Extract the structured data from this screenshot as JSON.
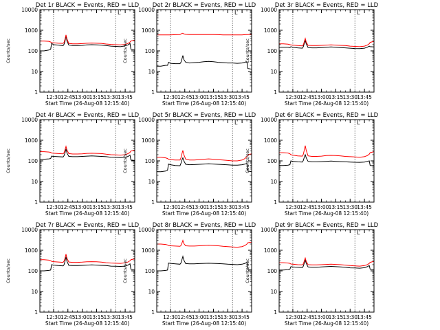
{
  "colors": {
    "events": "#000000",
    "lld": "#ff0000",
    "axis": "#000000",
    "marker": "#000000"
  },
  "shared": {
    "ylabel": "Counts/sec",
    "xlabel": "Start Time (26-Aug-08 12:15:40)",
    "y_ticks": [
      "1",
      "10",
      "100",
      "1000",
      "10000"
    ],
    "x_ticks": [
      "12:30",
      "12:45",
      "13:00",
      "13:15",
      "13:30",
      "13:45"
    ],
    "marker_times": [
      "12:30",
      "13:35"
    ],
    "corner_mark": "L"
  },
  "chart_data": [
    {
      "type": "line",
      "title": "Det 1r BLACK = Events, RED = LLD",
      "yscale": "log",
      "ylim": [
        1,
        10000
      ],
      "xlim": [
        "12:15:40",
        "13:55"
      ],
      "grid": false,
      "x": [
        "12:15:40",
        "12:20",
        "12:25",
        "12:27",
        "12:28",
        "12:30",
        "12:35",
        "12:40",
        "12:41",
        "12:42",
        "12:43",
        "12:44",
        "12:46",
        "12:50",
        "12:55",
        "13:00",
        "13:05",
        "13:10",
        "13:15",
        "13:20",
        "13:25",
        "13:30",
        "13:35",
        "13:40",
        "13:45",
        "13:48",
        "13:50",
        "13:51",
        "13:55"
      ],
      "series": [
        {
          "name": "Events",
          "color": "#000000",
          "values": [
            100,
            100,
            110,
            120,
            230,
            200,
            190,
            180,
            210,
            300,
            550,
            300,
            190,
            180,
            180,
            185,
            195,
            200,
            195,
            190,
            180,
            170,
            165,
            160,
            175,
            195,
            230,
            120,
            110
          ]
        },
        {
          "name": "LLD",
          "color": "#ff0000",
          "values": [
            300,
            300,
            290,
            270,
            250,
            245,
            235,
            230,
            260,
            380,
            600,
            380,
            230,
            220,
            220,
            225,
            235,
            240,
            235,
            230,
            215,
            205,
            200,
            195,
            205,
            230,
            270,
            300,
            330
          ]
        }
      ]
    },
    {
      "type": "line",
      "title": "Det 2r BLACK = Events, RED = LLD",
      "yscale": "log",
      "ylim": [
        1,
        10000
      ],
      "xlim": [
        "12:15:40",
        "13:55"
      ],
      "grid": false,
      "x": [
        "12:15:40",
        "12:20",
        "12:25",
        "12:27",
        "12:28",
        "12:30",
        "12:35",
        "12:40",
        "12:41",
        "12:42",
        "12:43",
        "12:44",
        "12:46",
        "12:50",
        "12:55",
        "13:00",
        "13:05",
        "13:10",
        "13:15",
        "13:20",
        "13:25",
        "13:30",
        "13:35",
        "13:40",
        "13:45",
        "13:48",
        "13:50",
        "13:51",
        "13:55"
      ],
      "series": [
        {
          "name": "Events",
          "color": "#000000",
          "values": [
            18,
            18,
            20,
            20,
            28,
            25,
            24,
            24,
            28,
            40,
            60,
            38,
            28,
            26,
            27,
            28,
            30,
            31,
            30,
            28,
            27,
            26,
            26,
            25,
            26,
            28,
            30,
            14,
            13
          ]
        },
        {
          "name": "LLD",
          "color": "#ff0000",
          "values": [
            600,
            600,
            600,
            600,
            600,
            600,
            610,
            620,
            650,
            700,
            720,
            660,
            630,
            620,
            620,
            620,
            620,
            620,
            615,
            610,
            600,
            600,
            600,
            600,
            600,
            610,
            620,
            620,
            630
          ]
        }
      ]
    },
    {
      "type": "line",
      "title": "Det 3r BLACK = Events, RED = LLD",
      "yscale": "log",
      "ylim": [
        1,
        10000
      ],
      "xlim": [
        "12:15:40",
        "13:55"
      ],
      "grid": false,
      "x": [
        "12:15:40",
        "12:20",
        "12:25",
        "12:27",
        "12:28",
        "12:30",
        "12:35",
        "12:40",
        "12:41",
        "12:42",
        "12:43",
        "12:44",
        "12:46",
        "12:50",
        "12:55",
        "13:00",
        "13:05",
        "13:10",
        "13:15",
        "13:20",
        "13:25",
        "13:30",
        "13:35",
        "13:40",
        "13:45",
        "13:48",
        "13:50",
        "13:51",
        "13:55"
      ],
      "series": [
        {
          "name": "Events",
          "color": "#000000",
          "values": [
            150,
            150,
            150,
            145,
            160,
            150,
            140,
            135,
            160,
            230,
            320,
            220,
            145,
            140,
            140,
            145,
            150,
            155,
            150,
            145,
            140,
            135,
            130,
            128,
            135,
            150,
            170,
            160,
            155
          ]
        },
        {
          "name": "LLD",
          "color": "#ff0000",
          "values": [
            220,
            220,
            210,
            200,
            195,
            190,
            180,
            175,
            200,
            280,
            400,
            270,
            185,
            180,
            180,
            185,
            190,
            195,
            190,
            185,
            180,
            170,
            165,
            160,
            170,
            190,
            220,
            260,
            290
          ]
        }
      ]
    },
    {
      "type": "line",
      "title": "Det 4r BLACK = Events, RED = LLD",
      "yscale": "log",
      "ylim": [
        1,
        10000
      ],
      "xlim": [
        "12:15:40",
        "13:55"
      ],
      "grid": false,
      "x": [
        "12:15:40",
        "12:20",
        "12:25",
        "12:27",
        "12:28",
        "12:30",
        "12:35",
        "12:40",
        "12:41",
        "12:42",
        "12:43",
        "12:44",
        "12:46",
        "12:50",
        "12:55",
        "13:00",
        "13:05",
        "13:10",
        "13:15",
        "13:20",
        "13:25",
        "13:30",
        "13:35",
        "13:40",
        "13:45",
        "13:48",
        "13:50",
        "13:51",
        "13:55"
      ],
      "series": [
        {
          "name": "Events",
          "color": "#000000",
          "values": [
            120,
            120,
            125,
            130,
            170,
            165,
            160,
            155,
            180,
            250,
            380,
            240,
            165,
            160,
            160,
            165,
            170,
            175,
            170,
            165,
            160,
            150,
            148,
            145,
            150,
            165,
            190,
            110,
            105
          ]
        },
        {
          "name": "LLD",
          "color": "#ff0000",
          "values": [
            280,
            280,
            270,
            260,
            240,
            235,
            225,
            220,
            250,
            350,
            500,
            340,
            225,
            215,
            215,
            220,
            230,
            235,
            230,
            225,
            210,
            200,
            195,
            190,
            200,
            225,
            260,
            300,
            330
          ]
        }
      ]
    },
    {
      "type": "line",
      "title": "Det 5r BLACK = Events, RED = LLD",
      "yscale": "log",
      "ylim": [
        1,
        10000
      ],
      "xlim": [
        "12:15:40",
        "13:55"
      ],
      "grid": false,
      "x": [
        "12:15:40",
        "12:20",
        "12:25",
        "12:27",
        "12:28",
        "12:30",
        "12:35",
        "12:40",
        "12:41",
        "12:42",
        "12:43",
        "12:44",
        "12:46",
        "12:50",
        "12:55",
        "13:00",
        "13:05",
        "13:10",
        "13:15",
        "13:20",
        "13:25",
        "13:30",
        "13:35",
        "13:40",
        "13:45",
        "13:48",
        "13:50",
        "13:51",
        "13:55"
      ],
      "series": [
        {
          "name": "Events",
          "color": "#000000",
          "values": [
            30,
            30,
            32,
            35,
            70,
            65,
            60,
            58,
            75,
            110,
            140,
            100,
            68,
            65,
            66,
            68,
            70,
            72,
            70,
            68,
            66,
            64,
            62,
            62,
            65,
            70,
            75,
            32,
            30
          ]
        },
        {
          "name": "LLD",
          "color": "#ff0000",
          "values": [
            150,
            150,
            140,
            130,
            120,
            115,
            110,
            110,
            140,
            220,
            320,
            200,
            120,
            110,
            110,
            115,
            120,
            125,
            120,
            115,
            110,
            105,
            100,
            100,
            110,
            130,
            160,
            200,
            220
          ]
        }
      ]
    },
    {
      "type": "line",
      "title": "Det 6r BLACK = Events, RED = LLD",
      "yscale": "log",
      "ylim": [
        1,
        10000
      ],
      "xlim": [
        "12:15:40",
        "13:55"
      ],
      "grid": false,
      "x": [
        "12:15:40",
        "12:20",
        "12:25",
        "12:27",
        "12:28",
        "12:30",
        "12:35",
        "12:40",
        "12:41",
        "12:42",
        "12:43",
        "12:44",
        "12:46",
        "12:50",
        "12:55",
        "13:00",
        "13:05",
        "13:10",
        "13:15",
        "13:20",
        "13:25",
        "13:30",
        "13:35",
        "13:40",
        "13:45",
        "13:48",
        "13:50",
        "13:51",
        "13:55"
      ],
      "series": [
        {
          "name": "Events",
          "color": "#000000",
          "values": [
            60,
            60,
            62,
            65,
            100,
            95,
            90,
            88,
            105,
            150,
            200,
            140,
            95,
            90,
            90,
            92,
            95,
            98,
            95,
            92,
            90,
            88,
            86,
            85,
            88,
            95,
            100,
            60,
            58
          ]
        },
        {
          "name": "LLD",
          "color": "#ff0000",
          "values": [
            250,
            250,
            240,
            220,
            200,
            190,
            175,
            170,
            210,
            330,
            550,
            320,
            175,
            165,
            165,
            170,
            180,
            185,
            180,
            175,
            165,
            160,
            155,
            150,
            160,
            180,
            210,
            250,
            280
          ]
        }
      ]
    },
    {
      "type": "line",
      "title": "Det 7r BLACK = Events, RED = LLD",
      "yscale": "log",
      "ylim": [
        1,
        10000
      ],
      "xlim": [
        "12:15:40",
        "13:55"
      ],
      "grid": false,
      "x": [
        "12:15:40",
        "12:20",
        "12:25",
        "12:27",
        "12:28",
        "12:30",
        "12:35",
        "12:40",
        "12:41",
        "12:42",
        "12:43",
        "12:44",
        "12:46",
        "12:50",
        "12:55",
        "13:00",
        "13:05",
        "13:10",
        "13:15",
        "13:20",
        "13:25",
        "13:30",
        "13:35",
        "13:40",
        "13:45",
        "13:48",
        "13:50",
        "13:51",
        "13:55"
      ],
      "series": [
        {
          "name": "Events",
          "color": "#000000",
          "values": [
            100,
            100,
            105,
            110,
            200,
            190,
            180,
            175,
            200,
            300,
            480,
            290,
            185,
            180,
            180,
            185,
            190,
            195,
            190,
            185,
            180,
            170,
            168,
            165,
            170,
            190,
            220,
            120,
            110
          ]
        },
        {
          "name": "LLD",
          "color": "#ff0000",
          "values": [
            350,
            350,
            330,
            310,
            290,
            280,
            270,
            260,
            300,
            420,
            650,
            410,
            270,
            260,
            260,
            265,
            275,
            280,
            275,
            265,
            250,
            240,
            235,
            230,
            245,
            270,
            310,
            350,
            380
          ]
        }
      ]
    },
    {
      "type": "line",
      "title": "Det 8r BLACK = Events, RED = LLD",
      "yscale": "log",
      "ylim": [
        1,
        10000
      ],
      "xlim": [
        "12:15:40",
        "13:55"
      ],
      "grid": false,
      "x": [
        "12:15:40",
        "12:20",
        "12:25",
        "12:27",
        "12:28",
        "12:30",
        "12:35",
        "12:40",
        "12:41",
        "12:42",
        "12:43",
        "12:44",
        "12:46",
        "12:50",
        "12:55",
        "13:00",
        "13:05",
        "13:10",
        "13:15",
        "13:20",
        "13:25",
        "13:30",
        "13:35",
        "13:40",
        "13:45",
        "13:48",
        "13:50",
        "13:51",
        "13:55"
      ],
      "series": [
        {
          "name": "Events",
          "color": "#000000",
          "values": [
            100,
            100,
            105,
            110,
            240,
            230,
            220,
            210,
            240,
            350,
            500,
            330,
            225,
            220,
            220,
            225,
            230,
            235,
            230,
            225,
            220,
            210,
            205,
            200,
            210,
            230,
            260,
            120,
            115
          ]
        },
        {
          "name": "LLD",
          "color": "#ff0000",
          "values": [
            2000,
            2000,
            1900,
            1800,
            1700,
            1650,
            1600,
            1550,
            1700,
            2200,
            3000,
            2100,
            1650,
            1600,
            1600,
            1650,
            1700,
            1750,
            1700,
            1650,
            1550,
            1500,
            1450,
            1400,
            1500,
            1700,
            2000,
            2300,
            2500
          ]
        }
      ]
    },
    {
      "type": "line",
      "title": "Det 9r BLACK = Events, RED = LLD",
      "yscale": "log",
      "ylim": [
        1,
        10000
      ],
      "xlim": [
        "12:15:40",
        "13:55"
      ],
      "grid": false,
      "x": [
        "12:15:40",
        "12:20",
        "12:25",
        "12:27",
        "12:28",
        "12:30",
        "12:35",
        "12:40",
        "12:41",
        "12:42",
        "12:43",
        "12:44",
        "12:46",
        "12:50",
        "12:55",
        "13:00",
        "13:05",
        "13:10",
        "13:15",
        "13:20",
        "13:25",
        "13:30",
        "13:35",
        "13:40",
        "13:45",
        "13:48",
        "13:50",
        "13:51",
        "13:55"
      ],
      "series": [
        {
          "name": "Events",
          "color": "#000000",
          "values": [
            110,
            110,
            115,
            120,
            160,
            155,
            150,
            145,
            170,
            240,
            340,
            230,
            155,
            150,
            150,
            155,
            160,
            165,
            160,
            155,
            150,
            140,
            138,
            135,
            142,
            160,
            180,
            120,
            115
          ]
        },
        {
          "name": "LLD",
          "color": "#ff0000",
          "values": [
            250,
            250,
            240,
            230,
            215,
            210,
            200,
            195,
            220,
            300,
            420,
            290,
            200,
            195,
            195,
            200,
            205,
            210,
            205,
            200,
            190,
            180,
            175,
            170,
            180,
            200,
            230,
            260,
            290
          ]
        }
      ]
    }
  ]
}
